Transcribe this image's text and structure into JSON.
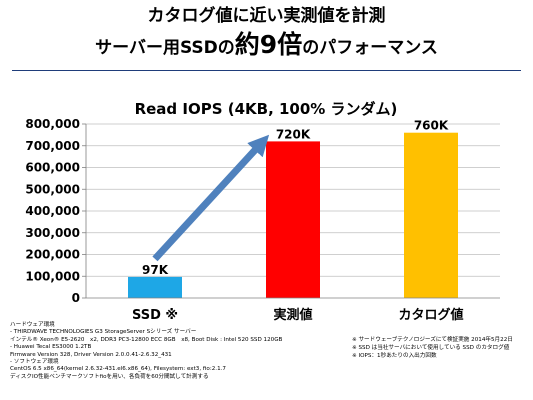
{
  "header": {
    "line1": "カタログ値に近い実測値を計測",
    "line2_prefix": "サーバー用SSDの",
    "line2_emphasis": "約9倍",
    "line2_suffix": "のパフォーマンス"
  },
  "chart_data": {
    "type": "bar",
    "title": "Read IOPS (4KB, 100% ランダム)",
    "categories": [
      "SSD ※",
      "実測値",
      "カタログ値"
    ],
    "values": [
      97000,
      720000,
      760000
    ],
    "data_labels": [
      "97K",
      "720K",
      "760K"
    ],
    "bar_colors": [
      "#1ea7e6",
      "#ff0000",
      "#ffc000"
    ],
    "ylim": [
      0,
      800000
    ],
    "yticks": [
      0,
      100000,
      200000,
      300000,
      400000,
      500000,
      600000,
      700000,
      800000
    ],
    "ytick_labels": [
      "0",
      "100,000",
      "200,000",
      "300,000",
      "400,000",
      "500,000",
      "600,000",
      "700,000",
      "800,000"
    ],
    "grid": true,
    "annotation": {
      "type": "arrow",
      "from": {
        "category": "SSD ※",
        "value": 180000
      },
      "to": {
        "category": "実測値",
        "value": 715000
      },
      "color": "#4f81bd"
    },
    "xlabel": "",
    "ylabel": ""
  },
  "hardware": {
    "heading": "ハードウェア環境",
    "lines": [
      "- THIRDWAVE TECHNOLOGIES G3 StorageServer Sシリーズ サーバー",
      "インテル® Xeon® E5-2620　x2, DDR3 PC3-12800 ECC 8GB　x8, Boot Disk : Intel 520 SSD 120GB",
      "- Huawei Tecal ES3000 1.2TB",
      "Firmware Version 328, Driver Version 2.0.0.41-2.6.32_431",
      "- ソフトウェア環境",
      "CentOS 6.5 x86_64(kernel 2.6.32-431.el6.x86_64), Filesystem: ext3, fio:2.1.7",
      "ディスクIO性能ベンチマークソフトfioを用い、各負荷を60分間試して計測する"
    ]
  },
  "notes": [
    "※ サードウェーブテクノロジーズにて検証実施 2014年5月22日",
    "※ SSD は当社サーバにおいて使用している SSD のカタログ値",
    "※ IOPS：1秒あたりの入出力回数"
  ],
  "colors": {
    "accent": "#1f3d7a",
    "arrow": "#4f81bd",
    "grid": "#bfbfbf"
  }
}
